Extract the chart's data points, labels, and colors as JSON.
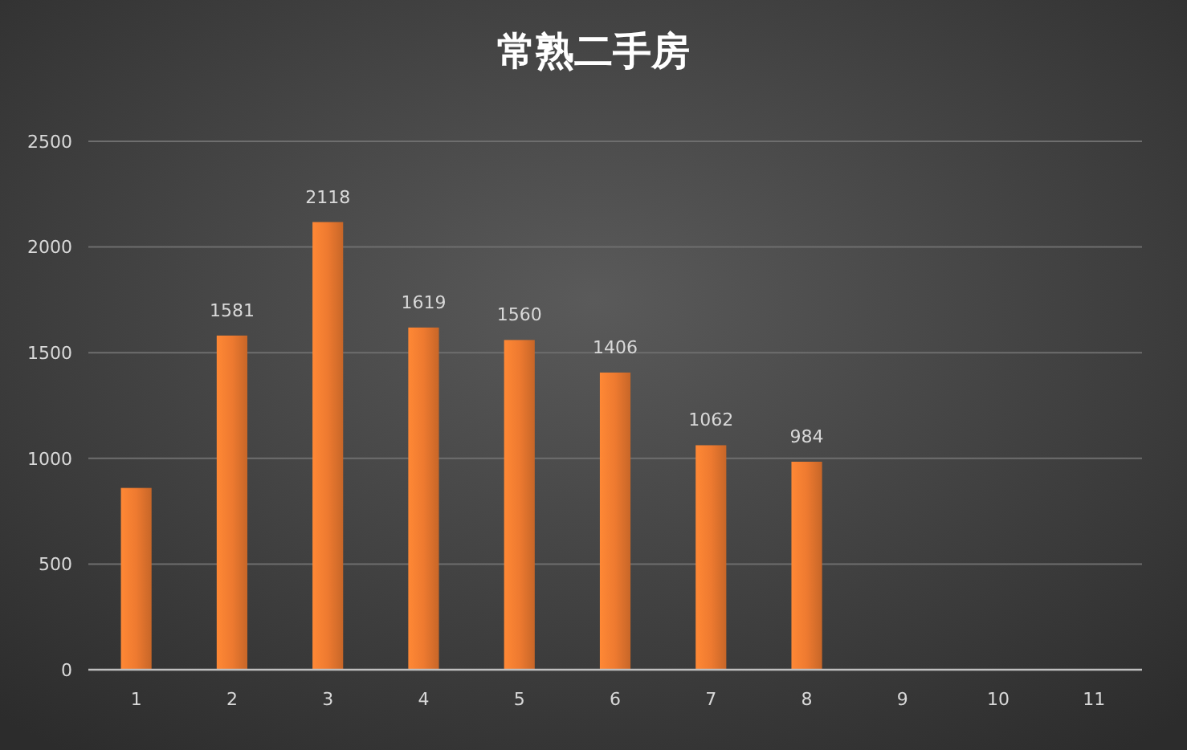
{
  "chart_data": {
    "type": "bar",
    "title": "常熟二手房",
    "categories": [
      "1",
      "2",
      "3",
      "4",
      "5",
      "6",
      "7",
      "8",
      "9",
      "10",
      "11"
    ],
    "values": [
      860,
      1581,
      2118,
      1619,
      1560,
      1406,
      1062,
      984,
      null,
      null,
      null
    ],
    "value_labels": [
      null,
      "1581",
      "2118",
      "1619",
      "1560",
      "1406",
      "1062",
      "984",
      null,
      null,
      null
    ],
    "color": "#ee7a30",
    "ylim": [
      0,
      2500
    ],
    "yticks": [
      0,
      500,
      1000,
      1500,
      2000,
      2500
    ],
    "grid": "y"
  }
}
